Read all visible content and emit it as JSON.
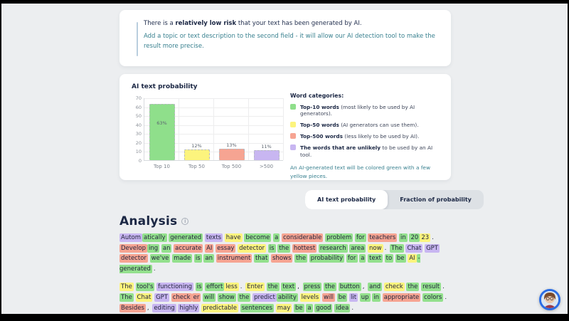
{
  "alert": {
    "line1_prefix": "There is a ",
    "line1_bold": "relatively low risk",
    "line1_suffix": " that your text has been generated by AI.",
    "line2": "Add a topic or text description to the second field - it will allow our AI detection tool to make the result more precise."
  },
  "chart_data": {
    "type": "bar",
    "title": "AI text probability",
    "categories": [
      "Top 10",
      "Top 50",
      "Top 500",
      ">500"
    ],
    "values": [
      63,
      12,
      13,
      11
    ],
    "labels": [
      "63%",
      "12%",
      "13%",
      "11%"
    ],
    "colors": [
      "#8fdf8b",
      "#fcf47d",
      "#f6a492",
      "#c8b6f1"
    ],
    "ylim": [
      0,
      70
    ],
    "yticks": [
      0,
      10,
      20,
      30,
      40,
      50,
      60,
      70
    ],
    "grid": true,
    "legend_position": "right"
  },
  "legend": {
    "heading": "Word categories:",
    "items": [
      {
        "color": "#8fdf8b",
        "bold": "Top-10 words",
        "rest": " (most likely to be used by AI generators)."
      },
      {
        "color": "#fcf47d",
        "bold": "Top-50 words",
        "rest": " (AI generators can use them)."
      },
      {
        "color": "#f6a492",
        "bold": "Top-500 words",
        "rest": " (less likely to be used by AI)."
      },
      {
        "color": "#c8b6f1",
        "bold": "The words that are unlikely",
        "rest": " to be used by an AI tool."
      }
    ],
    "note": "An AI-generated text will be colored green with a few yellow pieces."
  },
  "tabs": [
    {
      "label": "AI text probability",
      "active": true
    },
    {
      "label": "Fraction of probability",
      "active": false
    }
  ],
  "analysis": {
    "title": "Analysis",
    "info_icon": "i",
    "highlight_colors": {
      "g": "#93e08d",
      "y": "#fcf47d",
      "r": "#f6a492",
      "p": "#c8b6f1",
      "n": "transparent"
    },
    "paragraphs": [
      [
        [
          "Autom",
          "p"
        ],
        [
          "atically",
          "g",
          1
        ],
        [
          "generated",
          "g"
        ],
        [
          "texts",
          "p"
        ],
        [
          "have",
          "y"
        ],
        [
          "become",
          "g"
        ],
        [
          "a",
          "g"
        ],
        [
          "considerable",
          "r"
        ],
        [
          "problem",
          "g"
        ],
        [
          "for",
          "g"
        ],
        [
          "teachers",
          "r"
        ],
        [
          "in",
          "g"
        ],
        [
          "20",
          "g"
        ],
        [
          "23",
          "y",
          1
        ],
        [
          ".",
          "n",
          1
        ],
        [
          "Develop",
          "r"
        ],
        [
          "ing",
          "g",
          1
        ],
        [
          "an",
          "g"
        ],
        [
          "accurate",
          "r"
        ],
        [
          "AI",
          "r"
        ],
        [
          "essay",
          "r"
        ],
        [
          "detector",
          "y"
        ],
        [
          "is",
          "g"
        ],
        [
          "the",
          "g"
        ],
        [
          "hottest",
          "r"
        ],
        [
          "research",
          "g"
        ],
        [
          "area",
          "g"
        ],
        [
          "now",
          "y"
        ],
        [
          ".",
          "n",
          1
        ],
        [
          "The",
          "g"
        ],
        [
          "Chat",
          "p"
        ],
        [
          "GPT",
          "p"
        ],
        [
          "detector",
          "r"
        ],
        [
          "we've",
          "g"
        ],
        [
          "made",
          "g"
        ],
        [
          "is",
          "g"
        ],
        [
          "an",
          "g"
        ],
        [
          "instrument",
          "r"
        ],
        [
          "that",
          "g"
        ],
        [
          "shows",
          "r"
        ],
        [
          "the",
          "g"
        ],
        [
          "probability",
          "g"
        ],
        [
          "for",
          "g"
        ],
        [
          "a",
          "g"
        ],
        [
          "text",
          "g"
        ],
        [
          "to",
          "g"
        ],
        [
          "be",
          "g"
        ],
        [
          "AI",
          "y"
        ],
        [
          "-generated",
          "g",
          1
        ],
        [
          ".",
          "n",
          1
        ]
      ],
      [
        [
          "The",
          "y"
        ],
        [
          "tool's",
          "g"
        ],
        [
          "functioning",
          "p"
        ],
        [
          "is",
          "g"
        ],
        [
          "effort",
          "g"
        ],
        [
          "less",
          "y",
          1
        ],
        [
          ".",
          "n",
          1
        ],
        [
          "Enter",
          "y"
        ],
        [
          "the",
          "g"
        ],
        [
          "text",
          "g"
        ],
        [
          ",",
          "n",
          1
        ],
        [
          "press",
          "g"
        ],
        [
          "the",
          "g"
        ],
        [
          "button",
          "g"
        ],
        [
          ",",
          "n",
          1
        ],
        [
          "and",
          "g"
        ],
        [
          "check",
          "y"
        ],
        [
          "the",
          "g"
        ],
        [
          "result",
          "g"
        ],
        [
          ".",
          "n",
          1
        ],
        [
          "The",
          "g"
        ],
        [
          "Chat",
          "y"
        ],
        [
          "GPT",
          "p"
        ],
        [
          "check",
          "r"
        ],
        [
          "er",
          "r",
          1
        ],
        [
          "will",
          "g"
        ],
        [
          "show",
          "g"
        ],
        [
          "the",
          "g"
        ],
        [
          "predict",
          "p"
        ],
        [
          "ability",
          "g",
          1
        ],
        [
          "levels",
          "y"
        ],
        [
          "will",
          "r"
        ],
        [
          "be",
          "g"
        ],
        [
          "lit",
          "p"
        ],
        [
          "up",
          "g"
        ],
        [
          "in",
          "g"
        ],
        [
          "appropriate",
          "r"
        ],
        [
          "colors",
          "g"
        ],
        [
          ".",
          "n",
          1
        ],
        [
          "Besides",
          "r"
        ],
        [
          ",",
          "n",
          1
        ],
        [
          "editing",
          "p"
        ],
        [
          "highly",
          "p"
        ],
        [
          "predictable",
          "y"
        ],
        [
          "sentences",
          "g"
        ],
        [
          "may",
          "y"
        ],
        [
          "be",
          "g"
        ],
        [
          "a",
          "g"
        ],
        [
          "good",
          "g"
        ],
        [
          "idea",
          "g"
        ],
        [
          ".",
          "n",
          1
        ]
      ]
    ]
  }
}
